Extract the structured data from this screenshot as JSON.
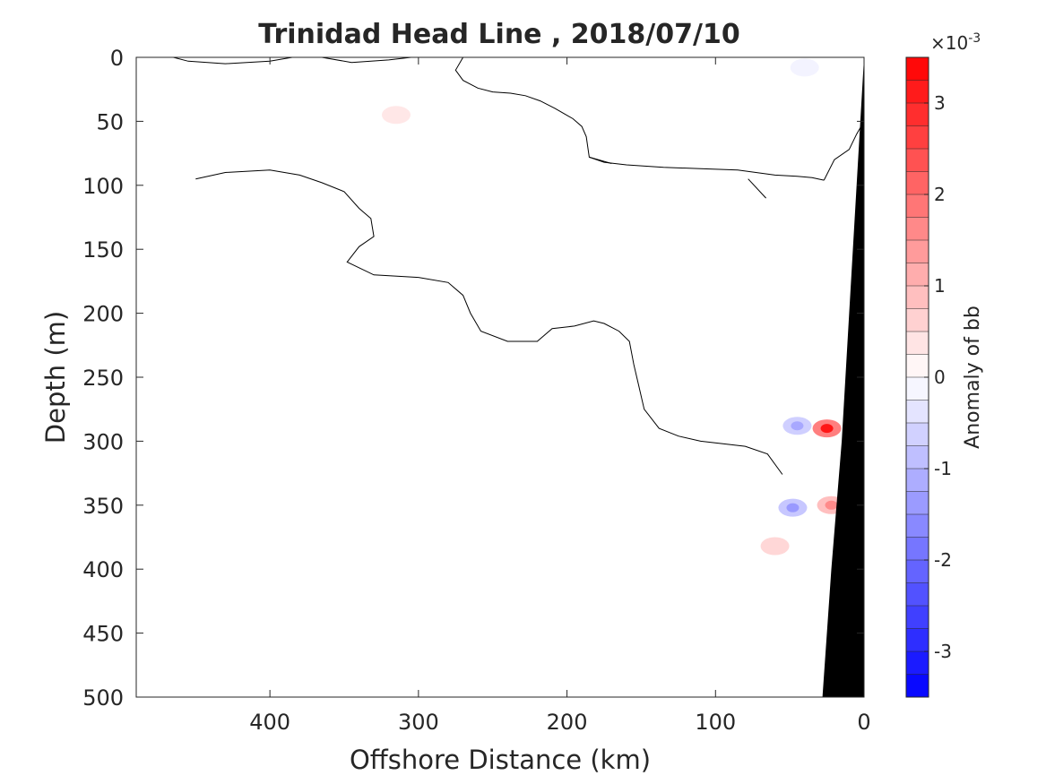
{
  "chart_data": {
    "type": "contour",
    "title": "Trinidad Head Line , 2018/07/10",
    "xlabel": "Offshore Distance (km)",
    "ylabel": "Depth (m)",
    "xlim": [
      490,
      0
    ],
    "ylim": [
      500,
      0
    ],
    "x_reversed": true,
    "y_reversed": true,
    "x_ticks": [
      400,
      300,
      200,
      100,
      0
    ],
    "x_tick_labels": [
      "400",
      "300",
      "200",
      "100",
      "0"
    ],
    "y_ticks": [
      0,
      50,
      100,
      150,
      200,
      250,
      300,
      350,
      400,
      450,
      500
    ],
    "y_tick_labels": [
      "0",
      "50",
      "100",
      "150",
      "200",
      "250",
      "300",
      "350",
      "400",
      "450",
      "500"
    ],
    "colorbar": {
      "label": "Anomaly of bb",
      "exponent_label": "×10",
      "exponent_power": "-3",
      "range": [
        -3.5,
        3.5
      ],
      "ticks": [
        3,
        2,
        1,
        0,
        -1,
        -2,
        -3
      ],
      "tick_labels": [
        "3",
        "2",
        "1",
        "0",
        "-1",
        "-2",
        "-3"
      ],
      "levels": 28,
      "colormap": "blue-white-red",
      "low_color": "#0000ff",
      "mid_color": "#ffffff",
      "high_color": "#ff0000"
    },
    "zero_contour_lines": [
      [
        [
          465,
          0
        ],
        [
          455,
          3
        ],
        [
          430,
          5
        ],
        [
          400,
          3
        ],
        [
          385,
          0
        ]
      ],
      [
        [
          365,
          0
        ],
        [
          345,
          4
        ],
        [
          320,
          2
        ],
        [
          305,
          0
        ]
      ],
      [
        [
          205,
          0
        ],
        [
          270,
          0
        ],
        [
          275,
          10
        ],
        [
          270,
          18
        ],
        [
          260,
          24
        ],
        [
          250,
          27
        ],
        [
          238,
          28
        ],
        [
          228,
          30
        ],
        [
          218,
          34
        ],
        [
          208,
          40
        ],
        [
          196,
          48
        ],
        [
          190,
          54
        ],
        [
          187,
          62
        ],
        [
          185,
          78
        ],
        [
          175,
          82
        ],
        [
          160,
          84
        ],
        [
          135,
          86
        ],
        [
          110,
          87
        ],
        [
          85,
          88
        ],
        [
          60,
          92
        ],
        [
          45,
          93
        ],
        [
          35,
          94
        ],
        [
          27,
          96
        ]
      ],
      [
        [
          185,
          78
        ],
        [
          170,
          83
        ]
      ],
      [
        [
          27,
          96
        ],
        [
          20,
          80
        ],
        [
          10,
          72
        ],
        [
          5,
          60
        ],
        [
          0,
          50
        ]
      ],
      [
        [
          450,
          95
        ],
        [
          430,
          90
        ],
        [
          400,
          88
        ],
        [
          380,
          92
        ],
        [
          365,
          98
        ],
        [
          350,
          105
        ],
        [
          340,
          118
        ],
        [
          332,
          126
        ],
        [
          330,
          140
        ],
        [
          340,
          148
        ],
        [
          348,
          160
        ],
        [
          330,
          170
        ],
        [
          300,
          172
        ],
        [
          280,
          176
        ],
        [
          270,
          186
        ],
        [
          265,
          200
        ],
        [
          258,
          214
        ],
        [
          240,
          222
        ],
        [
          220,
          222
        ],
        [
          210,
          212
        ],
        [
          195,
          210
        ],
        [
          182,
          206
        ],
        [
          175,
          208
        ],
        [
          165,
          214
        ],
        [
          158,
          222
        ],
        [
          155,
          240
        ],
        [
          152,
          255
        ],
        [
          148,
          275
        ],
        [
          138,
          290
        ],
        [
          125,
          296
        ],
        [
          110,
          300
        ],
        [
          95,
          302
        ],
        [
          80,
          304
        ],
        [
          65,
          310
        ],
        [
          55,
          326
        ]
      ],
      [
        [
          78,
          95
        ],
        [
          66,
          110
        ]
      ]
    ],
    "anomaly_patches": [
      {
        "x": 315,
        "y": 45,
        "value": 0.6
      },
      {
        "x": 25,
        "y": 290,
        "value": 3.2
      },
      {
        "x": 60,
        "y": 382,
        "value": 1.0
      },
      {
        "x": 45,
        "y": 288,
        "value": -1.2
      },
      {
        "x": 48,
        "y": 352,
        "value": -1.4
      },
      {
        "x": 40,
        "y": 8,
        "value": -0.3
      },
      {
        "x": 22,
        "y": 350,
        "value": 1.6
      }
    ],
    "bathymetry": [
      [
        0,
        0
      ],
      [
        0,
        500
      ],
      [
        28,
        500
      ],
      [
        22,
        400
      ],
      [
        15,
        300
      ],
      [
        10,
        200
      ],
      [
        5,
        100
      ],
      [
        0,
        0
      ]
    ]
  }
}
